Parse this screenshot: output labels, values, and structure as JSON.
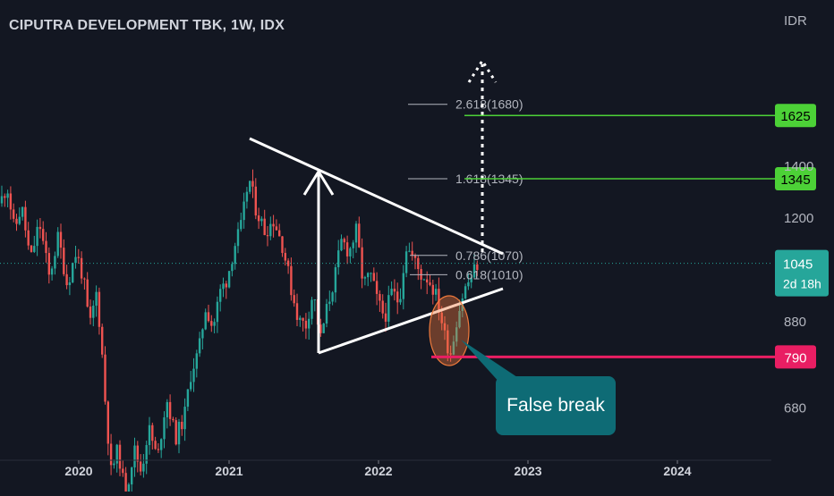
{
  "chart_data": {
    "type": "candlestick",
    "title": "CIPUTRA DEVELOPMENT TBK, 1W, IDX",
    "currency": "IDR",
    "x_ticks": [
      "2020",
      "2021",
      "2022",
      "2023",
      "2024"
    ],
    "y_ticks": [
      680,
      880,
      1200,
      1400
    ],
    "y_scale": "log",
    "ylim": [
      630,
      1900
    ],
    "current_price": {
      "value": 1045,
      "label": "1045",
      "countdown": "2d 18h"
    },
    "levels": [
      {
        "value": 1625,
        "label": "1625"
      },
      {
        "value": 1345,
        "label": "1345"
      },
      {
        "value": 790,
        "label": "790"
      }
    ],
    "fibonacci": [
      {
        "value": 1680,
        "label": "2.618(1680)"
      },
      {
        "value": 1345,
        "label": "1.618(1345)"
      },
      {
        "value": 1070,
        "label": "0.786(1070)"
      },
      {
        "value": 1010,
        "label": "0.618(1010)"
      }
    ],
    "annotation": "False break",
    "colors": {
      "background": "#131722",
      "up": "#26a69a",
      "down": "#ef5350",
      "target_line": "#4cd137",
      "support_line": "#e91e63",
      "current_price": "#26a69a",
      "callout": "#0e6b75"
    }
  }
}
